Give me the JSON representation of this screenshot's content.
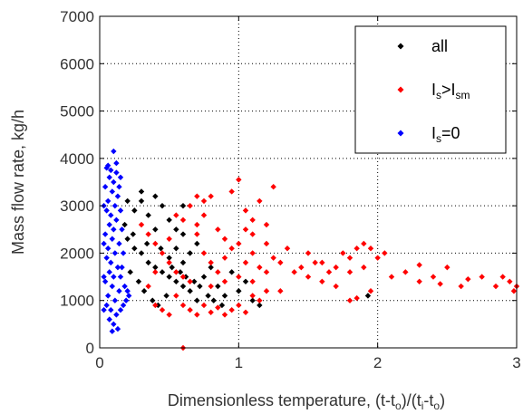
{
  "chart_data": {
    "type": "scatter",
    "xlabel": {
      "prefix": "Dimensionless temperature, (t-t",
      "sub1": "o",
      "mid": ")/(t",
      "sub2": "i",
      "mid2": "-t",
      "sub3": "o",
      "suffix": ")"
    },
    "ylabel": "Mass flow rate, kg/h",
    "xlim": [
      0,
      3
    ],
    "ylim": [
      0,
      7000
    ],
    "x_ticks": [
      "0",
      "1",
      "2",
      "3"
    ],
    "y_ticks": [
      "0",
      "1000",
      "2000",
      "3000",
      "4000",
      "5000",
      "6000",
      "7000"
    ],
    "grid": true,
    "legend_position": "top-right",
    "series": [
      {
        "name": "all",
        "label_main": "all",
        "color": "#000000",
        "marker": "diamond",
        "points": [
          [
            0.2,
            3100
          ],
          [
            0.25,
            2900
          ],
          [
            0.3,
            3100
          ],
          [
            0.35,
            2800
          ],
          [
            0.4,
            2500
          ],
          [
            0.45,
            3000
          ],
          [
            0.5,
            2700
          ],
          [
            0.55,
            2500
          ],
          [
            0.6,
            2400
          ],
          [
            0.2,
            2300
          ],
          [
            0.25,
            2100
          ],
          [
            0.3,
            2000
          ],
          [
            0.35,
            1800
          ],
          [
            0.4,
            1700
          ],
          [
            0.45,
            1600
          ],
          [
            0.5,
            1500
          ],
          [
            0.55,
            1400
          ],
          [
            0.6,
            1300
          ],
          [
            0.22,
            1600
          ],
          [
            0.28,
            1400
          ],
          [
            0.32,
            1200
          ],
          [
            0.38,
            1000
          ],
          [
            0.42,
            900
          ],
          [
            0.48,
            1100
          ],
          [
            0.65,
            1200
          ],
          [
            0.7,
            1000
          ],
          [
            0.75,
            1500
          ],
          [
            0.8,
            1700
          ],
          [
            0.85,
            1300
          ],
          [
            0.9,
            1100
          ],
          [
            0.95,
            1600
          ],
          [
            1.0,
            1200
          ],
          [
            1.05,
            1400
          ],
          [
            1.1,
            1000
          ],
          [
            1.15,
            900
          ],
          [
            0.65,
            2000
          ],
          [
            0.7,
            2200
          ],
          [
            0.6,
            1800
          ],
          [
            0.55,
            2100
          ],
          [
            0.5,
            1900
          ],
          [
            0.18,
            2600
          ],
          [
            0.24,
            2400
          ],
          [
            0.34,
            2200
          ],
          [
            0.44,
            2100
          ],
          [
            0.52,
            1700
          ],
          [
            0.58,
            1600
          ],
          [
            0.62,
            1500
          ],
          [
            0.68,
            1400
          ],
          [
            0.72,
            1300
          ],
          [
            0.78,
            1100
          ],
          [
            0.82,
            1000
          ],
          [
            0.88,
            900
          ],
          [
            1.93,
            1100
          ],
          [
            0.6,
            3000
          ],
          [
            0.4,
            3200
          ],
          [
            0.3,
            3300
          ]
        ]
      },
      {
        "name": "Is>Ism",
        "label_main": "I",
        "label_sub": "s",
        "label_mid": ">I",
        "label_sub2": "sm",
        "color": "#ff0000",
        "marker": "diamond",
        "points": [
          [
            0.3,
            2600
          ],
          [
            0.35,
            2400
          ],
          [
            0.4,
            2200
          ],
          [
            0.45,
            2000
          ],
          [
            0.5,
            1800
          ],
          [
            0.55,
            1600
          ],
          [
            0.6,
            1500
          ],
          [
            0.65,
            1400
          ],
          [
            0.7,
            2600
          ],
          [
            0.75,
            2800
          ],
          [
            0.8,
            3200
          ],
          [
            0.85,
            2500
          ],
          [
            0.9,
            2300
          ],
          [
            0.95,
            3300
          ],
          [
            1.0,
            3550
          ],
          [
            1.05,
            2900
          ],
          [
            1.1,
            2700
          ],
          [
            1.15,
            3100
          ],
          [
            1.2,
            2600
          ],
          [
            1.25,
            3400
          ],
          [
            0.75,
            2000
          ],
          [
            0.8,
            1800
          ],
          [
            0.85,
            1600
          ],
          [
            0.9,
            1900
          ],
          [
            0.95,
            2100
          ],
          [
            1.0,
            2200
          ],
          [
            1.05,
            1800
          ],
          [
            1.1,
            2000
          ],
          [
            1.15,
            1700
          ],
          [
            1.2,
            2200
          ],
          [
            1.25,
            1900
          ],
          [
            1.3,
            1800
          ],
          [
            1.35,
            2100
          ],
          [
            1.4,
            1600
          ],
          [
            1.45,
            1700
          ],
          [
            1.5,
            1500
          ],
          [
            1.55,
            1800
          ],
          [
            1.6,
            1400
          ],
          [
            1.65,
            1600
          ],
          [
            1.7,
            1300
          ],
          [
            1.75,
            2000
          ],
          [
            1.8,
            1900
          ],
          [
            1.85,
            2100
          ],
          [
            1.9,
            2200
          ],
          [
            1.95,
            2100
          ],
          [
            2.0,
            1900
          ],
          [
            2.05,
            2000
          ],
          [
            1.7,
            1700
          ],
          [
            1.8,
            1600
          ],
          [
            1.9,
            1700
          ],
          [
            2.1,
            1500
          ],
          [
            2.2,
            1600
          ],
          [
            2.3,
            1400
          ],
          [
            2.4,
            1500
          ],
          [
            2.5,
            1700
          ],
          [
            2.6,
            1300
          ],
          [
            2.75,
            1500
          ],
          [
            2.85,
            1300
          ],
          [
            2.9,
            1500
          ],
          [
            2.95,
            1400
          ],
          [
            3.0,
            1300
          ],
          [
            2.98,
            1200
          ],
          [
            0.4,
            900
          ],
          [
            0.45,
            800
          ],
          [
            0.5,
            700
          ],
          [
            0.55,
            1100
          ],
          [
            0.6,
            900
          ],
          [
            0.65,
            800
          ],
          [
            0.7,
            700
          ],
          [
            0.75,
            900
          ],
          [
            0.8,
            750
          ],
          [
            0.85,
            850
          ],
          [
            0.9,
            700
          ],
          [
            0.95,
            800
          ],
          [
            1.0,
            900
          ],
          [
            1.05,
            750
          ],
          [
            1.1,
            1100
          ],
          [
            1.15,
            1000
          ],
          [
            1.2,
            1200
          ],
          [
            1.85,
            1050
          ],
          [
            1.95,
            1200
          ],
          [
            1.8,
            1000
          ],
          [
            0.6,
            0
          ],
          [
            0.35,
            1300
          ],
          [
            0.4,
            1600
          ],
          [
            0.5,
            2300
          ],
          [
            0.6,
            2700
          ],
          [
            0.7,
            2400
          ],
          [
            0.8,
            1300
          ],
          [
            0.9,
            1400
          ],
          [
            1.0,
            1500
          ],
          [
            1.1,
            1400
          ],
          [
            1.2,
            1600
          ],
          [
            1.3,
            1200
          ],
          [
            0.55,
            2800
          ],
          [
            0.65,
            3000
          ],
          [
            0.7,
            3200
          ],
          [
            0.75,
            3100
          ],
          [
            1.05,
            2500
          ],
          [
            1.1,
            2400
          ],
          [
            1.5,
            2000
          ],
          [
            1.6,
            1800
          ],
          [
            2.65,
            1450
          ],
          [
            2.45,
            1350
          ],
          [
            2.3,
            1750
          ]
        ]
      },
      {
        "name": "Is=0",
        "label_main": "I",
        "label_sub": "s",
        "label_mid": "=0",
        "color": "#0000ff",
        "marker": "diamond",
        "points": [
          [
            0.1,
            4150
          ],
          [
            0.05,
            3800
          ],
          [
            0.08,
            3750
          ],
          [
            0.12,
            3700
          ],
          [
            0.07,
            3600
          ],
          [
            0.1,
            3500
          ],
          [
            0.04,
            3400
          ],
          [
            0.09,
            3300
          ],
          [
            0.13,
            3200
          ],
          [
            0.06,
            3100
          ],
          [
            0.11,
            3000
          ],
          [
            0.05,
            2900
          ],
          [
            0.08,
            2800
          ],
          [
            0.12,
            2700
          ],
          [
            0.07,
            2600
          ],
          [
            0.1,
            2500
          ],
          [
            0.04,
            2400
          ],
          [
            0.09,
            2300
          ],
          [
            0.14,
            2200
          ],
          [
            0.06,
            2100
          ],
          [
            0.11,
            2000
          ],
          [
            0.05,
            1900
          ],
          [
            0.08,
            1800
          ],
          [
            0.13,
            1700
          ],
          [
            0.07,
            1600
          ],
          [
            0.1,
            1500
          ],
          [
            0.04,
            1400
          ],
          [
            0.09,
            1300
          ],
          [
            0.14,
            1200
          ],
          [
            0.06,
            1100
          ],
          [
            0.11,
            1000
          ],
          [
            0.05,
            900
          ],
          [
            0.08,
            800
          ],
          [
            0.12,
            700
          ],
          [
            0.07,
            600
          ],
          [
            0.1,
            500
          ],
          [
            0.13,
            400
          ],
          [
            0.09,
            350
          ],
          [
            0.15,
            1500
          ],
          [
            0.16,
            1700
          ],
          [
            0.18,
            1300
          ],
          [
            0.2,
            1200
          ],
          [
            0.17,
            900
          ],
          [
            0.15,
            800
          ],
          [
            0.19,
            1000
          ],
          [
            0.21,
            1100
          ],
          [
            0.16,
            2500
          ],
          [
            0.15,
            2900
          ],
          [
            0.17,
            2000
          ],
          [
            0.14,
            3400
          ],
          [
            0.15,
            3600
          ],
          [
            0.12,
            3900
          ],
          [
            0.06,
            3850
          ],
          [
            0.03,
            3000
          ],
          [
            0.03,
            2200
          ],
          [
            0.03,
            1500
          ],
          [
            0.03,
            800
          ]
        ]
      }
    ]
  }
}
